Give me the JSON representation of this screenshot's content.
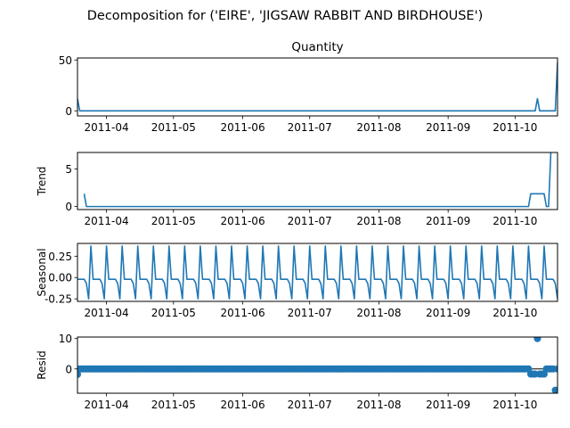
{
  "figure": {
    "suptitle": "Decomposition for ('EIRE', 'JIGSAW RABBIT AND BIRDHOUSE')"
  },
  "colors": {
    "series": "#1f77b4",
    "axes": "#000000",
    "background": "#ffffff"
  },
  "chart_data": [
    {
      "type": "line",
      "panel": "observed",
      "title": "Quantity",
      "ylabel": "",
      "x_dates": {
        "start": "2011-03-19",
        "end": "2011-10-20",
        "step_days": 1
      },
      "x_ticks": [
        "2011-04",
        "2011-05",
        "2011-06",
        "2011-07",
        "2011-08",
        "2011-09",
        "2011-10"
      ],
      "y_ticks": [
        0,
        50
      ],
      "ylim": [
        -5,
        52
      ],
      "baseline": 0,
      "points": [
        [
          "2011-03-19",
          12
        ],
        [
          "2011-03-20",
          0
        ],
        [
          "2011-10-10",
          0
        ],
        [
          "2011-10-11",
          12
        ],
        [
          "2011-10-12",
          0
        ],
        [
          "2011-10-19",
          0
        ],
        [
          "2011-10-20",
          48
        ]
      ]
    },
    {
      "type": "line",
      "panel": "trend",
      "ylabel": "Trend",
      "x_dates": {
        "start": "2011-03-19",
        "end": "2011-10-20",
        "step_days": 1
      },
      "x_ticks": [
        "2011-04",
        "2011-05",
        "2011-06",
        "2011-07",
        "2011-08",
        "2011-09",
        "2011-10"
      ],
      "y_ticks": [
        0,
        5
      ],
      "ylim": [
        -0.4,
        7.2
      ],
      "points": [
        [
          "2011-03-22",
          1.7
        ],
        [
          "2011-03-23",
          0
        ],
        [
          "2011-10-07",
          0
        ],
        [
          "2011-10-08",
          1.7
        ],
        [
          "2011-10-14",
          1.7
        ],
        [
          "2011-10-15",
          0
        ],
        [
          "2011-10-16",
          0
        ],
        [
          "2011-10-17",
          7.2
        ]
      ]
    },
    {
      "type": "line",
      "panel": "seasonal",
      "ylabel": "Seasonal",
      "x_dates": {
        "start": "2011-03-19",
        "end": "2011-10-20",
        "step_days": 1
      },
      "x_ticks": [
        "2011-04",
        "2011-05",
        "2011-06",
        "2011-07",
        "2011-08",
        "2011-09",
        "2011-10"
      ],
      "y_ticks": [
        "0.25",
        "0.00",
        "-0.25"
      ],
      "y_tick_values": [
        0.25,
        0,
        -0.25
      ],
      "ylim": [
        -0.28,
        0.4
      ],
      "period_days": 7,
      "weekly_pattern": [
        -0.02,
        -0.02,
        -0.02,
        -0.02,
        -0.07,
        -0.25,
        0.37
      ]
    },
    {
      "type": "scatter",
      "panel": "resid",
      "ylabel": "Resid",
      "x_dates": {
        "start": "2011-03-19",
        "end": "2011-10-20",
        "step_days": 1
      },
      "x_ticks": [
        "2011-04",
        "2011-05",
        "2011-06",
        "2011-07",
        "2011-08",
        "2011-09",
        "2011-10"
      ],
      "y_ticks": [
        0,
        10
      ],
      "ylim": [
        -8,
        10.5
      ],
      "baseline": 0,
      "default_value": 0,
      "outliers": [
        [
          "2011-03-19",
          -1.8
        ],
        [
          "2011-10-08",
          -1.7
        ],
        [
          "2011-10-09",
          -1.7
        ],
        [
          "2011-10-10",
          -1.7
        ],
        [
          "2011-10-11",
          10
        ],
        [
          "2011-10-12",
          -1.7
        ],
        [
          "2011-10-13",
          -1.7
        ],
        [
          "2011-10-14",
          -1.7
        ],
        [
          "2011-10-19",
          -7
        ]
      ]
    }
  ]
}
